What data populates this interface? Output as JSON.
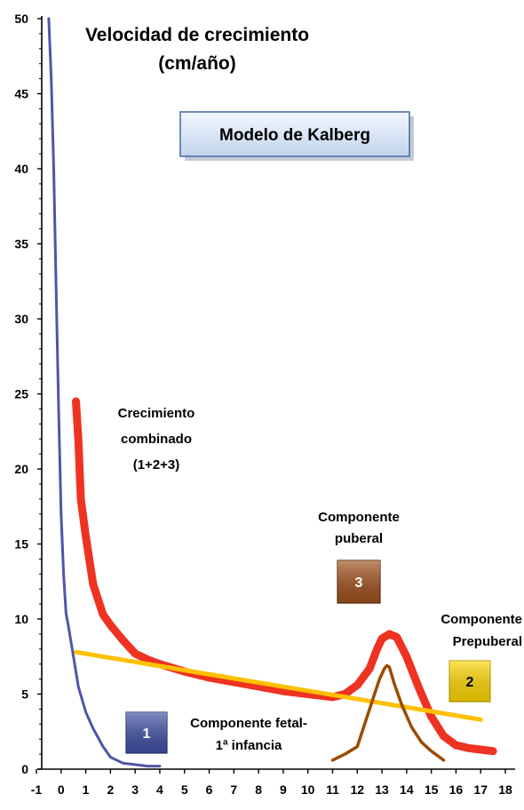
{
  "chart_data": {
    "type": "line",
    "title_lines": [
      "Velocidad de crecimiento",
      "(cm/año)"
    ],
    "model_label": "Modelo de Kalberg",
    "xlim": [
      -1,
      18
    ],
    "ylim": [
      0,
      50
    ],
    "x_ticks": [
      -1,
      0,
      1,
      2,
      3,
      4,
      5,
      6,
      7,
      8,
      9,
      10,
      11,
      12,
      13,
      14,
      15,
      16,
      17,
      18
    ],
    "y_ticks": [
      0,
      5,
      10,
      15,
      20,
      25,
      30,
      35,
      40,
      45,
      50
    ],
    "grid": false,
    "series": [
      {
        "key": "fetal",
        "color": "#5055A8",
        "x": [
          -0.5,
          -0.4,
          -0.3,
          -0.2,
          -0.1,
          0.0,
          0.1,
          0.2,
          0.3,
          0.5,
          0.7,
          1.0,
          1.3,
          1.7,
          2.0,
          2.5,
          3.0,
          3.5,
          4.0
        ],
        "y": [
          50,
          46,
          40,
          32,
          24,
          17,
          13,
          10.4,
          9.5,
          7.5,
          5.5,
          3.8,
          2.7,
          1.5,
          0.8,
          0.4,
          0.3,
          0.2,
          0.2
        ]
      },
      {
        "key": "combinado",
        "color": "#EE3322",
        "x": [
          0.6,
          0.7,
          0.8,
          1.0,
          1.3,
          1.7,
          2.0,
          2.5,
          3.0,
          3.5,
          4.0,
          5.0,
          6.0,
          7.0,
          8.0,
          9.0,
          10.0,
          10.5,
          11.0,
          11.5,
          12.0,
          12.5,
          12.8,
          13.0,
          13.3,
          13.6,
          14.0,
          14.5,
          15.0,
          15.5,
          16.0,
          16.5,
          17.0,
          17.5
        ],
        "y": [
          24.5,
          22,
          18,
          15.5,
          12.3,
          10.3,
          9.6,
          8.6,
          7.7,
          7.3,
          7.0,
          6.5,
          6.1,
          5.8,
          5.5,
          5.2,
          5.0,
          4.9,
          4.8,
          5.0,
          5.6,
          6.7,
          8.0,
          8.7,
          9.0,
          8.8,
          7.5,
          5.4,
          3.5,
          2.2,
          1.6,
          1.4,
          1.3,
          1.2
        ]
      },
      {
        "key": "prepuberal",
        "color": "#FFC000",
        "x": [
          0.6,
          17.0
        ],
        "y": [
          7.8,
          3.3
        ]
      },
      {
        "key": "puberal",
        "color": "#994C00",
        "x": [
          11.0,
          11.5,
          12.0,
          12.3,
          12.6,
          12.9,
          13.1,
          13.2,
          13.3,
          13.5,
          13.8,
          14.2,
          14.6,
          15.0,
          15.5
        ],
        "y": [
          0.6,
          1.0,
          1.5,
          3.0,
          4.5,
          6.0,
          6.7,
          6.9,
          6.8,
          5.7,
          4.3,
          2.8,
          1.8,
          1.2,
          0.6
        ]
      }
    ],
    "annotations": {
      "combinado": [
        "Crecimiento",
        "combinado",
        "(1+2+3)"
      ],
      "puberal": [
        "Componente",
        "puberal"
      ],
      "prepuberal": [
        "Componente",
        "Prepuberal"
      ],
      "fetal": [
        "Componente fetal-",
        "1ª infancia"
      ]
    },
    "boxes": [
      {
        "key": "fetal",
        "number": "1",
        "color": "#3F50A4"
      },
      {
        "key": "prepuberal",
        "number": "2",
        "color": "#FFD700"
      },
      {
        "key": "puberal",
        "number": "3",
        "color": "#A0501C"
      }
    ]
  }
}
